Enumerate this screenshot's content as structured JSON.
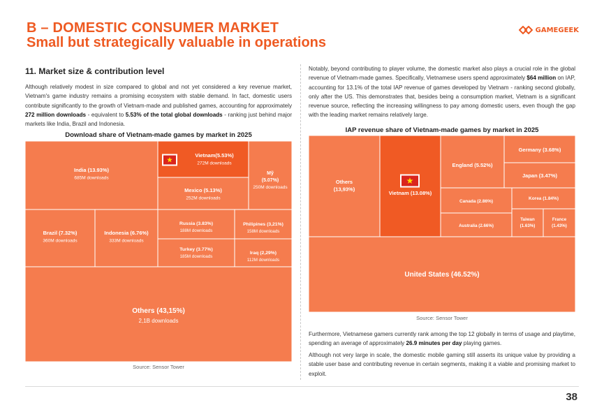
{
  "header": {
    "line1": "B –  DOMESTIC CONSUMER MARKET",
    "line2": "Small but strategically valuable in operations"
  },
  "logo": {
    "text": "GAMEGEEK",
    "icon": "gamegeek-logo-icon"
  },
  "section": {
    "title": "11. Market size & contribution level"
  },
  "left_text": {
    "p1_a": "Although relatively modest in size compared to global and not yet considered a key revenue market, Vietnam's game industry remains a promising ecosystem with stable demand. In fact, domestic users contribute significantly to the growth of Vietnam-made and published games, accounting for approximately ",
    "p1_b1": "272 million downloads",
    "p1_c": " - equivalent to ",
    "p1_b2": "5.53% of the total global downloads",
    "p1_d": " - ranking just behind major markets like India, Brazil and Indonesia."
  },
  "right_text": {
    "p1_a": "Notably, beyond contributing to player volume, the domestic market also plays a crucial role in the global revenue of Vietnam-made games. Specifically, Vietnamese users spend approximately ",
    "p1_b1": "$64 million",
    "p1_c": " on IAP, accounting for 13.1% of the total IAP revenue of games developed by Vietnam - ranking second globally, only after the US. This demonstrates that, besides being a consumption market, Vietnam is a significant revenue source, reflecting the increasing willingness to pay among domestic users, even though the gap with the leading market remains relatively large.",
    "p2_a": "Furthermore, Vietnamese gamers currently rank among the top 12 globally in terms of usage and playtime, spending an average of approximately ",
    "p2_b": "26.9 minutes per day",
    "p2_c": " playing games.",
    "p3": "Although not very large in scale, the domestic mobile gaming still asserts its unique value by providing a stable user base and contributing revenue in certain segments, making it a viable and promising market to exploit."
  },
  "page_number": "38",
  "colors": {
    "accent": "#ee5a22",
    "tile": "#f57c4e",
    "highlight": "#f05a24",
    "flag_red": "#da251d",
    "flag_star": "#ffde00"
  },
  "chart_data": [
    {
      "type": "treemap",
      "title": "Download share of Vietnam-made games by market in 2025",
      "source": "Source: Sensor Tower",
      "items": [
        {
          "name": "India",
          "share": 13.93,
          "label": "India (13.93%)",
          "sub": "685M downloads"
        },
        {
          "name": "Vietnam",
          "share": 5.53,
          "label": "Vietnam(5.53%)",
          "sub": "272M downloads",
          "highlight": true
        },
        {
          "name": "Mỹ",
          "share": 5.07,
          "label1": "Mỹ",
          "label2": "(5.07%)",
          "sub": "250M downloads"
        },
        {
          "name": "Mexico",
          "share": 5.13,
          "label": "Mexico (5.13%)",
          "sub": "252M downloads"
        },
        {
          "name": "Brazil",
          "share": 7.32,
          "label": "Brazil (7.32%)",
          "sub": "360M downloads"
        },
        {
          "name": "Indonesia",
          "share": 6.76,
          "label": "Indonesia (6.76%)",
          "sub": "333M downloads"
        },
        {
          "name": "Russia",
          "share": 3.83,
          "label": "Russia (3.83%)",
          "sub": "188M downloads"
        },
        {
          "name": "Philipines",
          "share": 3.21,
          "label": "Philipines (3,21%)",
          "sub": "158M downloads"
        },
        {
          "name": "Turkey",
          "share": 3.77,
          "label": "Turkey (3.77%)",
          "sub": "185M downloads"
        },
        {
          "name": "Iraq",
          "share": 2.29,
          "label": "Iraq (2,29%)",
          "sub": "112M downloads"
        },
        {
          "name": "Others",
          "share": 43.15,
          "label": "Others (43,15%)",
          "sub": "2,1B downloads"
        }
      ]
    },
    {
      "type": "treemap",
      "title": "IAP revenue share of Vietnam-made games by market in 2025",
      "source": "Source: Sensor Tower",
      "items": [
        {
          "name": "Others",
          "share": 13.93,
          "label1": "Others",
          "label2": "(13,93%)"
        },
        {
          "name": "Vietnam",
          "share": 13.08,
          "label": "Vietnam (13.08%)",
          "highlight": true
        },
        {
          "name": "England",
          "share": 5.52,
          "label": "England (5.52%)"
        },
        {
          "name": "Germany",
          "share": 3.68,
          "label": "Germany (3.68%)"
        },
        {
          "name": "Japan",
          "share": 3.47,
          "label": "Japan (3.47%)"
        },
        {
          "name": "Canada",
          "share": 2.86,
          "label": "Canada (2.86%)"
        },
        {
          "name": "Korea",
          "share": 1.84,
          "label": "Korea (1.84%)"
        },
        {
          "name": "Australia",
          "share": 2.66,
          "label": "Australia (2.66%)"
        },
        {
          "name": "Taiwan",
          "share": 1.63,
          "label1": "Taiwan",
          "label2": "(1.63%)"
        },
        {
          "name": "France",
          "share": 1.43,
          "label1": "France",
          "label2": "(1.43%)"
        },
        {
          "name": "United States",
          "share": 46.52,
          "label": "United States (46.52%)"
        }
      ]
    }
  ]
}
